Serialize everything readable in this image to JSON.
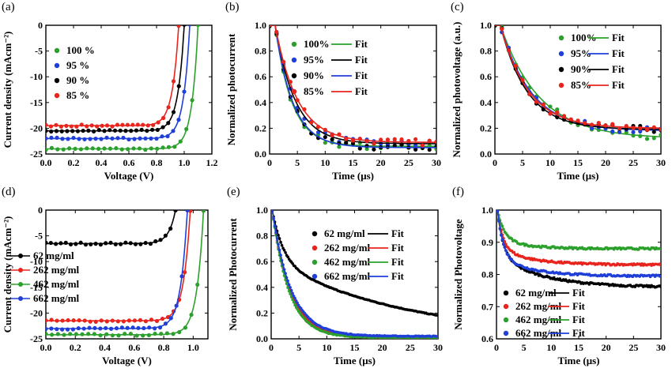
{
  "chart_data": [
    {
      "id": "a",
      "panel_label": "(a)",
      "type": "line",
      "xlabel": "Voltage (V)",
      "ylabel": "Current density (mAcm⁻²)",
      "xlim": [
        0.0,
        1.2
      ],
      "ylim": [
        -25,
        0
      ],
      "xticks": [
        "0.0",
        "0.2",
        "0.4",
        "0.6",
        "0.8",
        "1.0",
        "1.2"
      ],
      "xtick_values": [
        0,
        0.2,
        0.4,
        0.6,
        0.8,
        1.0,
        1.2
      ],
      "yticks": [
        "0",
        "-5",
        "-10",
        "-15",
        "-20",
        "-25"
      ],
      "ytick_values": [
        0,
        -5,
        -10,
        -15,
        -20,
        -25
      ],
      "legend_position": "center",
      "series": [
        {
          "name": "100 %",
          "color": "#2ca02c",
          "jsc": -24.0,
          "voc": 1.1
        },
        {
          "name": "95 %",
          "color": "#1f3fd8",
          "jsc": -22.0,
          "voc": 1.04
        },
        {
          "name": "90 %",
          "color": "#000000",
          "jsc": -20.5,
          "voc": 1.0
        },
        {
          "name": "85 %",
          "color": "#e8241c",
          "jsc": -19.5,
          "voc": 0.96
        }
      ]
    },
    {
      "id": "b",
      "panel_label": "(b)",
      "type": "scatter",
      "xlabel": "Time (μs)",
      "ylabel": "Normalized photocurrent",
      "xlim": [
        0,
        30
      ],
      "ylim": [
        0.0,
        1.0
      ],
      "xticks": [
        "0",
        "5",
        "10",
        "15",
        "20",
        "25",
        "30"
      ],
      "xtick_values": [
        0,
        5,
        10,
        15,
        20,
        25,
        30
      ],
      "yticks": [
        "0.0",
        "0.2",
        "0.4",
        "0.6",
        "0.8",
        "1.0"
      ],
      "ytick_values": [
        0,
        0.2,
        0.4,
        0.6,
        0.8,
        1.0
      ],
      "legend_position": "top-right",
      "fit_label": "Fit",
      "series": [
        {
          "name": "100%",
          "color": "#2ca02c",
          "fit_color": "#2ca02c",
          "t0": 1.0,
          "tau": 3.0,
          "y0": 0.06
        },
        {
          "name": "95%",
          "color": "#1f3fd8",
          "fit_color": "#000000",
          "t0": 1.0,
          "tau": 3.6,
          "y0": 0.08
        },
        {
          "name": "90%",
          "color": "#000000",
          "fit_color": "#1f3fd8",
          "t0": 1.0,
          "tau": 3.2,
          "y0": 0.05
        },
        {
          "name": "85%",
          "color": "#e8241c",
          "fit_color": "#e8241c",
          "t0": 1.0,
          "tau": 4.0,
          "y0": 0.09
        }
      ]
    },
    {
      "id": "c",
      "panel_label": "(c)",
      "type": "scatter",
      "xlabel": "Time (μs)",
      "ylabel": "Normalized photovoltage (a.u.)",
      "xlim": [
        0,
        30
      ],
      "ylim": [
        0.0,
        1.0
      ],
      "xticks": [
        "0",
        "5",
        "10",
        "15",
        "20",
        "25",
        "30"
      ],
      "xtick_values": [
        0,
        5,
        10,
        15,
        20,
        25,
        30
      ],
      "yticks": [
        "0.0",
        "0.2",
        "0.4",
        "0.6",
        "0.8",
        "1.0"
      ],
      "ytick_values": [
        0,
        0.2,
        0.4,
        0.6,
        0.8,
        1.0
      ],
      "legend_position": "top-right",
      "fit_label": "Fit",
      "series": [
        {
          "name": "100%",
          "color": "#2ca02c",
          "fit_color": "#2ca02c",
          "t0": 1.0,
          "tau": 7.0,
          "y0": 0.12
        },
        {
          "name": "95%",
          "color": "#1f3fd8",
          "fit_color": "#1f3fd8",
          "t0": 1.0,
          "tau": 5.5,
          "y0": 0.18
        },
        {
          "name": "90%",
          "color": "#000000",
          "fit_color": "#000000",
          "t0": 1.0,
          "tau": 4.8,
          "y0": 0.19
        },
        {
          "name": "85%",
          "color": "#e8241c",
          "fit_color": "#e8241c",
          "t0": 1.0,
          "tau": 5.0,
          "y0": 0.2
        }
      ]
    },
    {
      "id": "d",
      "panel_label": "(d)",
      "type": "line",
      "xlabel": "Voltage (V)",
      "ylabel": "Current density (mAcm⁻²)",
      "xlim": [
        0.0,
        1.1
      ],
      "ylim": [
        -25,
        0
      ],
      "xticks": [
        "0.0",
        "0.2",
        "0.4",
        "0.6",
        "0.8",
        "1.0"
      ],
      "xtick_values": [
        0,
        0.2,
        0.4,
        0.6,
        0.8,
        1.0
      ],
      "yticks": [
        "0",
        "-5",
        "-10",
        "-15",
        "-20",
        "-25"
      ],
      "ytick_values": [
        0,
        -5,
        -10,
        -15,
        -20,
        -25
      ],
      "legend_position": "left",
      "series": [
        {
          "name": "62   mg/ml",
          "color": "#000000",
          "jsc": -6.5,
          "voc": 0.88
        },
        {
          "name": "262 mg/ml",
          "color": "#e8241c",
          "jsc": -21.5,
          "voc": 0.98
        },
        {
          "name": "462 mg/ml",
          "color": "#2ca02c",
          "jsc": -24.2,
          "voc": 1.07
        },
        {
          "name": "662 mg/ml",
          "color": "#1f3fd8",
          "jsc": -23.0,
          "voc": 0.96
        }
      ]
    },
    {
      "id": "e",
      "panel_label": "(e)",
      "type": "scatter",
      "xlabel": "Time (μs)",
      "ylabel": "Normalized Photocurrent",
      "xlim": [
        0,
        30
      ],
      "ylim": [
        0.0,
        1.0
      ],
      "xticks": [
        "0",
        "5",
        "10",
        "15",
        "20",
        "25",
        "30"
      ],
      "xtick_values": [
        0,
        5,
        10,
        15,
        20,
        25,
        30
      ],
      "yticks": [
        "0.0",
        "0.2",
        "0.4",
        "0.6",
        "0.8",
        "1.0"
      ],
      "ytick_values": [
        0,
        0.2,
        0.4,
        0.6,
        0.8,
        1.0
      ],
      "legend_position": "top-right",
      "fit_label": "Fit",
      "series": [
        {
          "name": "62   mg/ml",
          "color": "#000000",
          "fit_color": "#000000",
          "t0": 0.2,
          "tau": 2.0,
          "y0": 0.0,
          "slow_amp": 0.6,
          "slow_tau": 25
        },
        {
          "name": "262 mg/ml",
          "color": "#e8241c",
          "fit_color": "#e8241c",
          "t0": 0.2,
          "tau": 3.2,
          "y0": 0.01
        },
        {
          "name": "462 mg/ml",
          "color": "#2ca02c",
          "fit_color": "#2ca02c",
          "t0": 0.2,
          "tau": 3.0,
          "y0": 0.01
        },
        {
          "name": "662 mg/ml",
          "color": "#1f3fd8",
          "fit_color": "#1f3fd8",
          "t0": 0.2,
          "tau": 3.4,
          "y0": 0.02
        }
      ]
    },
    {
      "id": "f",
      "panel_label": "(f)",
      "type": "scatter",
      "xlabel": "Time (μs)",
      "ylabel": "Normalized Photovoltage",
      "xlim": [
        0,
        30
      ],
      "ylim": [
        0.6,
        1.0
      ],
      "xticks": [
        "0",
        "5",
        "10",
        "15",
        "20",
        "25",
        "30"
      ],
      "xtick_values": [
        0,
        5,
        10,
        15,
        20,
        25,
        30
      ],
      "yticks": [
        "0.6",
        "0.7",
        "0.8",
        "0.9",
        "1.0"
      ],
      "ytick_values": [
        0.6,
        0.7,
        0.8,
        0.9,
        1.0
      ],
      "legend_position": "bottom-right",
      "fit_label": "Fit",
      "series": [
        {
          "name": "62   mg/ml",
          "color": "#000000",
          "fit_color": "#000000",
          "t0": 0.2,
          "tau": 1.0,
          "y0": 0.76,
          "slow_amp": 0.1,
          "slow_tau": 8
        },
        {
          "name": "262 mg/ml",
          "color": "#e8241c",
          "fit_color": "#e8241c",
          "t0": 0.2,
          "tau": 1.0,
          "y0": 0.83,
          "slow_amp": 0.05,
          "slow_tau": 6
        },
        {
          "name": "462 mg/ml",
          "color": "#2ca02c",
          "fit_color": "#2ca02c",
          "t0": 0.2,
          "tau": 1.2,
          "y0": 0.88,
          "slow_amp": 0.03,
          "slow_tau": 5
        },
        {
          "name": "662 mg/ml",
          "color": "#1f3fd8",
          "fit_color": "#1f3fd8",
          "t0": 0.2,
          "tau": 1.0,
          "y0": 0.795,
          "slow_amp": 0.06,
          "slow_tau": 6
        }
      ]
    }
  ]
}
